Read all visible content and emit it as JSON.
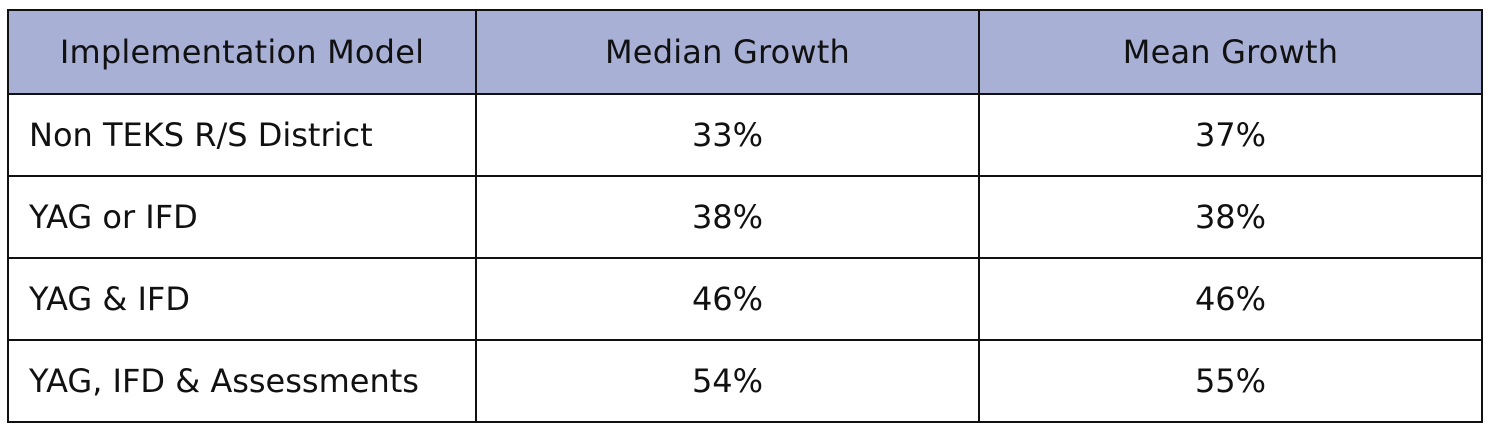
{
  "table": {
    "headers": [
      "Implementation Model",
      "Median Growth",
      "Mean Growth"
    ],
    "rows": [
      {
        "model": "Non TEKS R/S District",
        "median": "33%",
        "mean": "37%"
      },
      {
        "model": "YAG or IFD",
        "median": "38%",
        "mean": "38%"
      },
      {
        "model": "YAG & IFD",
        "median": "46%",
        "mean": "46%"
      },
      {
        "model": "YAG, IFD & Assessments",
        "median": "54%",
        "mean": "55%"
      }
    ]
  },
  "colors": {
    "header_bg": "#a8b0d6",
    "border": "#111111",
    "text": "#111111"
  }
}
